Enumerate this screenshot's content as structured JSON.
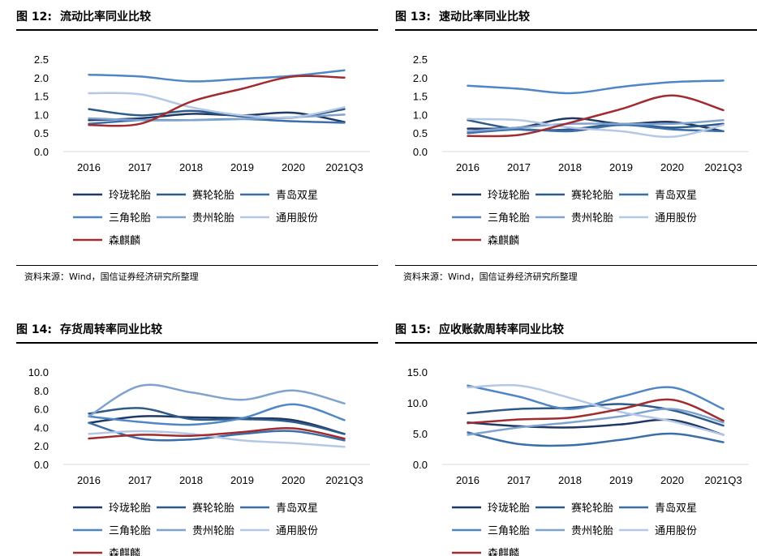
{
  "source_text": "资料来源：Wind，国信证券经济研究所整理",
  "series_colors": {
    "玲珑轮胎": "#1f3864",
    "赛轮轮胎": "#2e5a8a",
    "青岛双星": "#3a6ea8",
    "三角轮胎": "#4f86c6",
    "贵州轮胎": "#7fa2cf",
    "通用股份": "#b4c7e7",
    "森麒麟": "#a12c2f"
  },
  "charts": [
    {
      "fig_label": "图 12:",
      "title": "流动比率同业比较",
      "show_source": true,
      "chart_data": {
        "type": "line",
        "categories": [
          "2016",
          "2017",
          "2018",
          "2019",
          "2020",
          "2021Q3"
        ],
        "ylim": [
          0,
          2.5
        ],
        "yticks": [
          "0.0",
          "0.5",
          "1.0",
          "1.5",
          "2.0",
          "2.5"
        ],
        "grid": false,
        "legend_position": "bottom",
        "series": [
          {
            "name": "玲珑轮胎",
            "values": [
              0.85,
              0.9,
              1.02,
              0.98,
              1.05,
              0.8
            ]
          },
          {
            "name": "赛轮轮胎",
            "values": [
              1.15,
              0.98,
              1.1,
              0.95,
              0.92,
              1.15
            ]
          },
          {
            "name": "青岛双星",
            "values": [
              0.75,
              0.85,
              0.85,
              0.88,
              0.82,
              0.78
            ]
          },
          {
            "name": "三角轮胎",
            "values": [
              2.08,
              2.03,
              1.9,
              1.97,
              2.05,
              2.2
            ]
          },
          {
            "name": "贵州轮胎",
            "values": [
              0.9,
              0.85,
              0.85,
              0.88,
              0.93,
              1.0
            ]
          },
          {
            "name": "通用股份",
            "values": [
              1.58,
              1.55,
              1.2,
              0.98,
              0.93,
              1.2
            ]
          },
          {
            "name": "森麒麟",
            "values": [
              0.72,
              0.75,
              1.35,
              1.7,
              2.03,
              2.0
            ]
          }
        ]
      }
    },
    {
      "fig_label": "图 13:",
      "title": "速动比率同业比较",
      "show_source": true,
      "chart_data": {
        "type": "line",
        "categories": [
          "2016",
          "2017",
          "2018",
          "2019",
          "2020",
          "2021Q3"
        ],
        "ylim": [
          0,
          2.5
        ],
        "yticks": [
          "0.0",
          "0.5",
          "1.0",
          "1.5",
          "2.0",
          "2.5"
        ],
        "grid": false,
        "legend_position": "bottom",
        "series": [
          {
            "name": "玲珑轮胎",
            "values": [
              0.62,
              0.65,
              0.9,
              0.75,
              0.8,
              0.55
            ]
          },
          {
            "name": "赛轮轮胎",
            "values": [
              0.85,
              0.6,
              0.6,
              0.75,
              0.65,
              0.75
            ]
          },
          {
            "name": "青岛双星",
            "values": [
              0.5,
              0.6,
              0.55,
              0.72,
              0.6,
              0.55
            ]
          },
          {
            "name": "三角轮胎",
            "values": [
              1.78,
              1.7,
              1.58,
              1.75,
              1.88,
              1.92
            ]
          },
          {
            "name": "贵州轮胎",
            "values": [
              0.55,
              0.65,
              0.75,
              0.75,
              0.75,
              0.85
            ]
          },
          {
            "name": "通用股份",
            "values": [
              0.88,
              0.85,
              0.65,
              0.55,
              0.4,
              0.72
            ]
          },
          {
            "name": "森麒麟",
            "values": [
              0.42,
              0.45,
              0.78,
              1.15,
              1.52,
              1.12
            ]
          }
        ]
      }
    },
    {
      "fig_label": "图 14:",
      "title": "存货周转率同业比较",
      "show_source": false,
      "chart_data": {
        "type": "line",
        "categories": [
          "2016",
          "2017",
          "2018",
          "2019",
          "2020",
          "2021Q3"
        ],
        "ylim": [
          0,
          10
        ],
        "yticks": [
          "0.0",
          "2.0",
          "4.0",
          "6.0",
          "8.0",
          "10.0"
        ],
        "grid": false,
        "legend_position": "bottom",
        "series": [
          {
            "name": "玲珑轮胎",
            "values": [
              4.5,
              5.2,
              5.1,
              5.0,
              4.8,
              3.3
            ]
          },
          {
            "name": "赛轮轮胎",
            "values": [
              5.5,
              6.1,
              4.9,
              4.9,
              4.6,
              3.3
            ]
          },
          {
            "name": "青岛双星",
            "values": [
              4.5,
              2.8,
              2.7,
              3.3,
              3.6,
              2.6
            ]
          },
          {
            "name": "三角轮胎",
            "values": [
              5.2,
              4.6,
              4.3,
              5.0,
              6.5,
              4.8
            ]
          },
          {
            "name": "贵州轮胎",
            "values": [
              5.2,
              8.5,
              7.8,
              7.0,
              8.0,
              6.6
            ]
          },
          {
            "name": "通用股份",
            "values": [
              3.3,
              3.6,
              3.3,
              2.6,
              2.3,
              1.9
            ]
          },
          {
            "name": "森麒麟",
            "values": [
              2.8,
              3.2,
              3.1,
              3.5,
              3.9,
              2.8
            ]
          }
        ]
      }
    },
    {
      "fig_label": "图 15:",
      "title": "应收账款周转率同业比较",
      "show_source": false,
      "chart_data": {
        "type": "line",
        "categories": [
          "2016",
          "2017",
          "2018",
          "2019",
          "2020",
          "2021Q3"
        ],
        "ylim": [
          0,
          15
        ],
        "yticks": [
          "0.0",
          "5.0",
          "10.0",
          "15.0"
        ],
        "grid": false,
        "legend_position": "bottom",
        "series": [
          {
            "name": "玲珑轮胎",
            "values": [
              6.8,
              6.2,
              6.0,
              6.5,
              7.2,
              4.8
            ]
          },
          {
            "name": "赛轮轮胎",
            "values": [
              8.3,
              9.0,
              9.2,
              9.8,
              8.8,
              6.3
            ]
          },
          {
            "name": "青岛双星",
            "values": [
              5.2,
              3.3,
              3.1,
              4.0,
              5.0,
              3.6
            ]
          },
          {
            "name": "三角轮胎",
            "values": [
              12.8,
              11.0,
              9.0,
              11.0,
              12.5,
              9.0
            ]
          },
          {
            "name": "贵州轮胎",
            "values": [
              4.8,
              6.0,
              6.8,
              7.8,
              9.0,
              6.8
            ]
          },
          {
            "name": "通用股份",
            "values": [
              12.5,
              12.8,
              10.8,
              8.5,
              7.0,
              4.8
            ]
          },
          {
            "name": "森麒麟",
            "values": [
              6.7,
              7.3,
              7.6,
              9.0,
              10.5,
              7.1
            ]
          }
        ]
      }
    }
  ]
}
